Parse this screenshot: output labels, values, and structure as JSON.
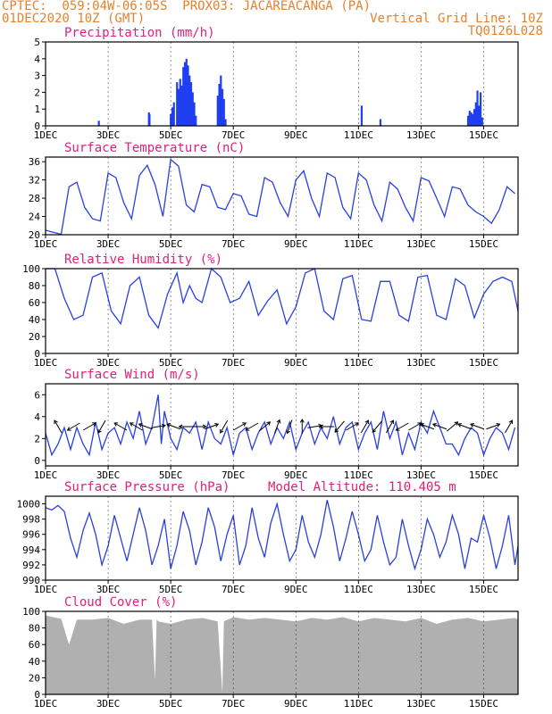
{
  "header": {
    "line1_left": "CPTEC:  059:04W-06:05S  PROX03: JACAREACANGA (PA)",
    "line2_left": "01DEC2020 10Z (GMT)",
    "line2_right": "Vertical Grid Line: 10Z",
    "line3_right": "TQ0126L028"
  },
  "x_axis": {
    "tick_labels": [
      "1DEC",
      "3DEC",
      "5DEC",
      "7DEC",
      "9DEC",
      "11DEC",
      "13DEC",
      "15DEC"
    ],
    "tick_days": [
      1,
      3,
      5,
      7,
      9,
      11,
      13,
      15
    ],
    "start_day": 1,
    "end_day": 16.1
  },
  "colors": {
    "line": "#2a3fe0",
    "bar": "#1f3ff0",
    "cloud": "#b0b0b0",
    "title": "#e0207a",
    "header": "#e8802a"
  },
  "chart_data": [
    {
      "type": "bar",
      "title": "Precipitation (mm/h)",
      "ylim": [
        0,
        5
      ],
      "yticks": [
        0,
        1,
        2,
        3,
        4,
        5
      ],
      "x": [
        2.7,
        4.3,
        4.32,
        5.0,
        5.05,
        5.1,
        5.2,
        5.25,
        5.3,
        5.35,
        5.4,
        5.45,
        5.5,
        5.55,
        5.6,
        5.65,
        5.7,
        5.75,
        5.8,
        6.5,
        6.55,
        6.6,
        6.65,
        6.7,
        6.75,
        11.1,
        11.7,
        14.5,
        14.55,
        14.6,
        14.65,
        14.7,
        14.75,
        14.8,
        14.85,
        14.9,
        14.95
      ],
      "values": [
        0.3,
        0.8,
        0.7,
        0.7,
        1.1,
        1.4,
        2.6,
        2.2,
        2.8,
        2.4,
        3.5,
        3.8,
        4.0,
        3.6,
        3.0,
        2.6,
        2.0,
        1.4,
        0.6,
        1.8,
        2.5,
        3.0,
        2.2,
        1.6,
        0.4,
        1.2,
        0.4,
        0.6,
        0.9,
        0.8,
        0.7,
        1.0,
        1.4,
        2.1,
        1.2,
        2.0,
        0.5
      ]
    },
    {
      "type": "line",
      "title": "Surface Temperature (nC)",
      "ylim": [
        20,
        37
      ],
      "yticks": [
        20,
        24,
        28,
        32,
        36
      ],
      "x": [
        1.0,
        1.2,
        1.5,
        1.75,
        2.0,
        2.25,
        2.5,
        2.75,
        3.0,
        3.25,
        3.5,
        3.75,
        4.0,
        4.25,
        4.5,
        4.75,
        5.0,
        5.25,
        5.5,
        5.75,
        6.0,
        6.25,
        6.5,
        6.75,
        7.0,
        7.25,
        7.5,
        7.75,
        8.0,
        8.25,
        8.5,
        8.75,
        9.0,
        9.25,
        9.5,
        9.75,
        10.0,
        10.25,
        10.5,
        10.75,
        11.0,
        11.25,
        11.5,
        11.75,
        12.0,
        12.25,
        12.5,
        12.75,
        13.0,
        13.25,
        13.5,
        13.75,
        14.0,
        14.25,
        14.5,
        14.75,
        15.0,
        15.25,
        15.5,
        15.75,
        16.0
      ],
      "values": [
        21.0,
        20.6,
        20.1,
        30.5,
        31.5,
        26,
        23.5,
        23,
        33.5,
        32.5,
        27,
        23.5,
        33,
        35.2,
        31,
        24,
        36.5,
        35,
        26.5,
        25,
        31,
        30.5,
        26,
        25.5,
        29,
        28.5,
        24.5,
        24,
        32.5,
        31.5,
        27,
        24,
        32,
        34,
        28,
        24,
        33.5,
        32.5,
        26,
        23.5,
        33.5,
        32,
        26.5,
        23,
        31.5,
        30,
        26,
        23,
        32.5,
        31.8,
        28,
        24,
        30.5,
        30,
        26.5,
        25,
        24,
        22.5,
        25.5,
        30.5,
        29
      ]
    },
    {
      "type": "line",
      "title": "Relative Humidity (%)",
      "ylim": [
        0,
        100
      ],
      "yticks": [
        0,
        20,
        40,
        60,
        80,
        100
      ],
      "x": [
        1.0,
        1.3,
        1.6,
        1.9,
        2.2,
        2.5,
        2.8,
        3.1,
        3.4,
        3.7,
        4.0,
        4.3,
        4.6,
        4.9,
        5.2,
        5.4,
        5.6,
        5.8,
        6.0,
        6.3,
        6.6,
        6.9,
        7.2,
        7.5,
        7.8,
        8.1,
        8.4,
        8.7,
        9.0,
        9.3,
        9.6,
        9.9,
        10.2,
        10.5,
        10.8,
        11.1,
        11.4,
        11.7,
        12.0,
        12.3,
        12.6,
        12.9,
        13.2,
        13.5,
        13.8,
        14.1,
        14.4,
        14.7,
        15.0,
        15.3,
        15.6,
        15.9,
        16.1
      ],
      "values": [
        100,
        100,
        65,
        40,
        45,
        90,
        95,
        50,
        35,
        80,
        90,
        45,
        30,
        70,
        95,
        60,
        80,
        65,
        60,
        100,
        90,
        60,
        65,
        85,
        45,
        62,
        75,
        35,
        55,
        95,
        100,
        50,
        40,
        88,
        92,
        40,
        38,
        85,
        85,
        45,
        38,
        90,
        92,
        45,
        40,
        88,
        80,
        42,
        70,
        85,
        90,
        85,
        50
      ]
    },
    {
      "type": "line",
      "title": "Surface Wind (m/s)",
      "ylim": [
        -0.5,
        7
      ],
      "yticks": [
        0,
        2,
        4,
        6
      ],
      "x": [
        1.0,
        1.2,
        1.4,
        1.6,
        1.8,
        2.0,
        2.2,
        2.4,
        2.6,
        2.8,
        3.0,
        3.2,
        3.4,
        3.6,
        3.8,
        4.0,
        4.2,
        4.4,
        4.6,
        4.7,
        4.8,
        5.0,
        5.2,
        5.4,
        5.6,
        5.8,
        6.0,
        6.2,
        6.4,
        6.6,
        6.8,
        7.0,
        7.2,
        7.4,
        7.6,
        7.8,
        8.0,
        8.2,
        8.4,
        8.6,
        8.8,
        9.0,
        9.2,
        9.4,
        9.6,
        9.8,
        10.0,
        10.2,
        10.4,
        10.6,
        10.8,
        11.0,
        11.2,
        11.4,
        11.6,
        11.8,
        12.0,
        12.2,
        12.4,
        12.6,
        12.8,
        13.0,
        13.2,
        13.4,
        13.6,
        13.8,
        14.0,
        14.2,
        14.4,
        14.6,
        14.8,
        15.0,
        15.2,
        15.4,
        15.6,
        15.8,
        16.0
      ],
      "values": [
        2.5,
        0.5,
        1.5,
        3.0,
        1.0,
        3.0,
        1.5,
        0.5,
        3.5,
        1.0,
        2.5,
        3.0,
        1.5,
        3.5,
        2.0,
        4.5,
        1.5,
        3.0,
        6.0,
        1.5,
        4.5,
        2.0,
        1.0,
        3.0,
        2.5,
        3.5,
        1.0,
        3.5,
        2.0,
        1.5,
        3.0,
        0.5,
        2.5,
        3.0,
        1.0,
        2.5,
        3.5,
        1.5,
        3.0,
        2.0,
        3.5,
        1.0,
        2.5,
        3.5,
        1.5,
        3.0,
        2.0,
        4.0,
        1.5,
        3.0,
        3.5,
        1.0,
        2.5,
        3.5,
        1.0,
        4.5,
        2.0,
        3.5,
        0.5,
        2.5,
        1.0,
        3.5,
        2.5,
        4.5,
        3.0,
        1.5,
        1.5,
        0.5,
        2.0,
        3.0,
        2.5,
        0.5,
        2.0,
        3.0,
        2.5,
        1.0,
        3.0
      ],
      "wind_barbs": [
        {
          "day": 1.4,
          "dir": -120
        },
        {
          "day": 1.9,
          "dir": 150
        },
        {
          "day": 2.4,
          "dir": -30
        },
        {
          "day": 2.8,
          "dir": 120
        },
        {
          "day": 3.4,
          "dir": -150
        },
        {
          "day": 3.9,
          "dir": -150
        },
        {
          "day": 4.2,
          "dir": -160
        },
        {
          "day": 4.6,
          "dir": -10
        },
        {
          "day": 5.1,
          "dir": -160
        },
        {
          "day": 5.5,
          "dir": 180
        },
        {
          "day": 5.9,
          "dir": 0
        },
        {
          "day": 6.3,
          "dir": -20
        },
        {
          "day": 6.7,
          "dir": 120
        },
        {
          "day": 7.2,
          "dir": -30
        },
        {
          "day": 7.6,
          "dir": 150
        },
        {
          "day": 8.0,
          "dir": -40
        },
        {
          "day": 8.4,
          "dir": -70
        },
        {
          "day": 8.8,
          "dir": 110
        },
        {
          "day": 9.2,
          "dir": -90
        },
        {
          "day": 9.6,
          "dir": -10
        },
        {
          "day": 10.0,
          "dir": 180
        },
        {
          "day": 10.4,
          "dir": 130
        },
        {
          "day": 10.8,
          "dir": -30
        },
        {
          "day": 11.2,
          "dir": -60
        },
        {
          "day": 11.6,
          "dir": 130
        },
        {
          "day": 12.0,
          "dir": -60
        },
        {
          "day": 12.4,
          "dir": 150
        },
        {
          "day": 12.8,
          "dir": -30
        },
        {
          "day": 13.2,
          "dir": -160
        },
        {
          "day": 13.6,
          "dir": -160
        },
        {
          "day": 14.0,
          "dir": -40
        },
        {
          "day": 14.4,
          "dir": -160
        },
        {
          "day": 14.8,
          "dir": -160
        },
        {
          "day": 15.3,
          "dir": -20
        },
        {
          "day": 15.8,
          "dir": -60
        }
      ]
    },
    {
      "type": "line",
      "title": "Surface Pressure (hPa)",
      "subtitle": "Model Altitude: 110.405 m",
      "ylim": [
        990,
        1001
      ],
      "yticks": [
        990,
        992,
        994,
        996,
        998,
        1000
      ],
      "x": [
        1.0,
        1.2,
        1.4,
        1.6,
        1.8,
        2.0,
        2.2,
        2.4,
        2.6,
        2.8,
        3.0,
        3.2,
        3.4,
        3.6,
        3.8,
        4.0,
        4.2,
        4.4,
        4.6,
        4.8,
        5.0,
        5.2,
        5.4,
        5.6,
        5.8,
        6.0,
        6.2,
        6.4,
        6.6,
        6.8,
        7.0,
        7.2,
        7.4,
        7.6,
        7.8,
        8.0,
        8.2,
        8.4,
        8.6,
        8.8,
        9.0,
        9.2,
        9.4,
        9.6,
        9.8,
        10.0,
        10.2,
        10.4,
        10.6,
        10.8,
        11.0,
        11.2,
        11.4,
        11.6,
        11.8,
        12.0,
        12.2,
        12.4,
        12.6,
        12.8,
        13.0,
        13.2,
        13.4,
        13.6,
        13.8,
        14.0,
        14.2,
        14.4,
        14.6,
        14.8,
        15.0,
        15.2,
        15.4,
        15.6,
        15.8,
        16.0,
        16.1
      ],
      "values": [
        999.5,
        999.2,
        999.8,
        999.0,
        995.5,
        993.0,
        996.5,
        998.8,
        996.0,
        992.0,
        994.5,
        998.5,
        995.5,
        992.5,
        996.0,
        999.5,
        996.5,
        992.0,
        994.5,
        998.0,
        991.5,
        994.5,
        999.0,
        996.5,
        992.0,
        995.0,
        999.5,
        997.0,
        992.5,
        996.0,
        998.5,
        992.0,
        994.5,
        999.5,
        995.5,
        993.0,
        997.5,
        1000.0,
        996.0,
        992.5,
        994.0,
        998.5,
        995.0,
        993.0,
        996.0,
        1000.5,
        997.0,
        992.5,
        995.5,
        999.0,
        996.0,
        992.5,
        994.0,
        998.5,
        995.0,
        992.0,
        993.0,
        998.0,
        994.5,
        991.5,
        994.0,
        998.0,
        996.0,
        993.0,
        995.0,
        998.5,
        996.0,
        991.5,
        995.5,
        995.0,
        998.5,
        995.5,
        991.5,
        994.5,
        998.5,
        992.0,
        994.5
      ]
    },
    {
      "type": "area",
      "title": "Cloud Cover (%)",
      "ylim": [
        0,
        100
      ],
      "yticks": [
        0,
        20,
        40,
        60,
        80,
        100
      ],
      "x": [
        1.0,
        1.5,
        1.75,
        2.0,
        2.5,
        3.0,
        3.5,
        4.0,
        4.4,
        4.5,
        4.55,
        4.6,
        5.0,
        5.5,
        6.0,
        6.5,
        6.65,
        6.7,
        7.0,
        7.5,
        8.0,
        8.5,
        9.0,
        9.5,
        10.0,
        10.5,
        11.0,
        11.5,
        12.0,
        12.5,
        13.0,
        13.5,
        14.0,
        14.5,
        15.0,
        15.5,
        16.0,
        16.1
      ],
      "values": [
        95,
        91,
        60,
        90,
        90,
        92,
        85,
        90,
        90,
        17,
        90,
        88,
        85,
        90,
        92,
        88,
        2,
        88,
        93,
        90,
        92,
        90,
        88,
        92,
        90,
        93,
        88,
        92,
        90,
        88,
        92,
        85,
        90,
        92,
        88,
        90,
        92,
        90
      ]
    }
  ]
}
